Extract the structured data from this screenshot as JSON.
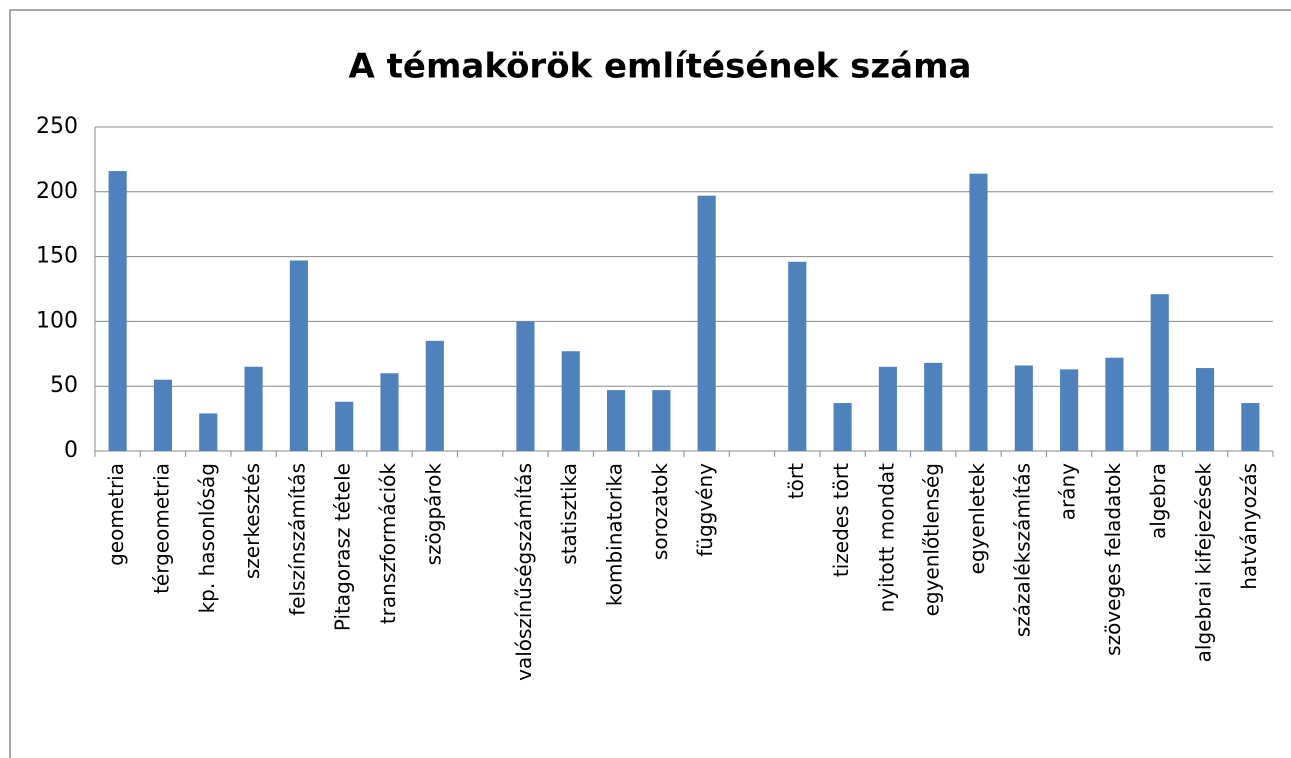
{
  "chart_data": {
    "type": "bar",
    "title": "A témakörök említésének száma",
    "categories": [
      "geometria",
      "térgeometria",
      "kp. hasonlóság",
      "szerkesztés",
      "felszínszámítás",
      "Pitagorasz tétele",
      "transzformációk",
      "szögpárok",
      null,
      "valószínűségszámítás",
      "statisztika",
      "kombinatorika",
      "sorozatok",
      "függvény",
      null,
      "tört",
      "tizedes tört",
      "nyitott mondat",
      "egyenlőtlenség",
      "egyenletek",
      "százalékszámítás",
      "arány",
      "szöveges feladatok",
      "algebra",
      "algebrai kifejezések",
      "hatványozás"
    ],
    "values": [
      216,
      55,
      29,
      65,
      147,
      38,
      60,
      85,
      null,
      100,
      77,
      47,
      47,
      197,
      null,
      146,
      37,
      65,
      68,
      214,
      66,
      63,
      72,
      121,
      64,
      37
    ],
    "color": "#4f81bd",
    "ylim": [
      0,
      250
    ],
    "yticks": [
      0,
      50,
      100,
      150,
      200,
      250
    ],
    "grid": true
  }
}
